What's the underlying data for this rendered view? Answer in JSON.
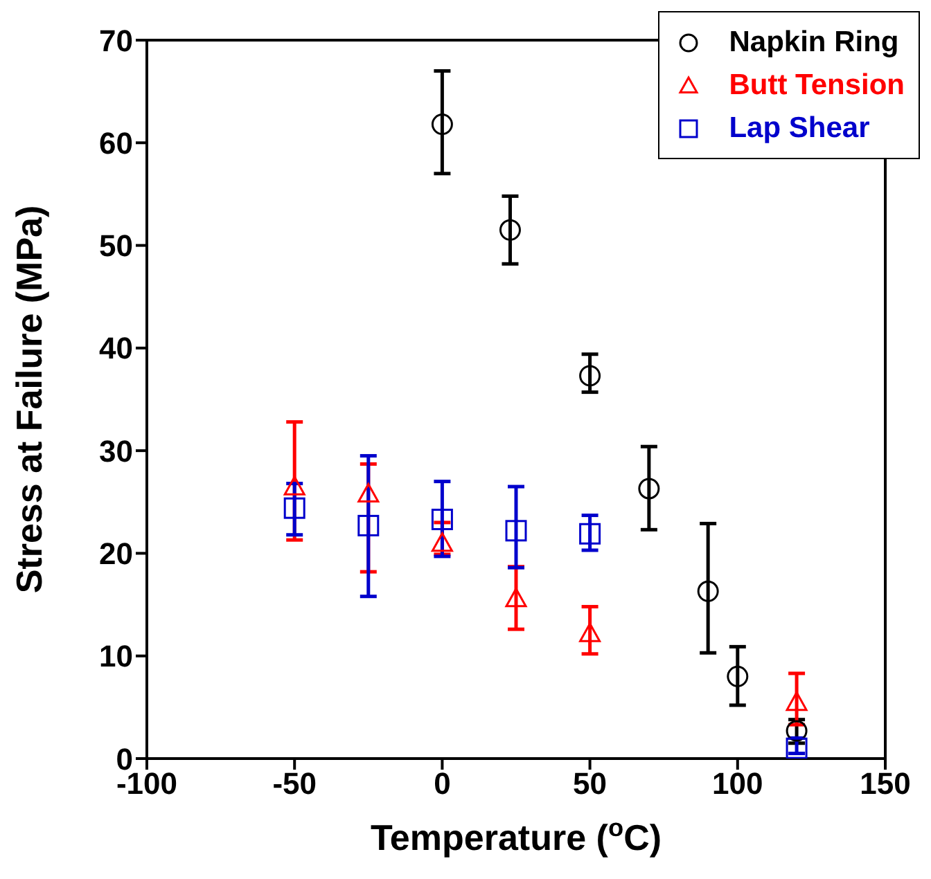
{
  "chart_data": {
    "type": "scatter",
    "xlabel": "Temperature ($^{o}$C)",
    "ylabel": "Stress at Failure (MPa)",
    "xlim": [
      -100,
      150
    ],
    "xticks": [
      -100,
      -50,
      0,
      50,
      100,
      150
    ],
    "ylim": [
      0,
      70
    ],
    "yticks": [
      0,
      10,
      20,
      30,
      40,
      50,
      60,
      70
    ],
    "legend": "top right",
    "series": [
      {
        "name": "Napkin Ring",
        "color": "#000000",
        "marker": "circle",
        "x": [
          0,
          23,
          50,
          70,
          90,
          100,
          120
        ],
        "values": [
          61.8,
          51.5,
          37.3,
          26.3,
          16.3,
          8,
          2.7
        ],
        "errors": [
          [
            57,
            67
          ],
          [
            48.2,
            54.8
          ],
          [
            35.7,
            39.4
          ],
          [
            22.3,
            30.4
          ],
          [
            10.3,
            22.9
          ],
          [
            5.2,
            10.9
          ],
          [
            1.5,
            3.8
          ]
        ]
      },
      {
        "name": "Butt Tension",
        "color": "#ff0000",
        "marker": "triangle",
        "x": [
          -50,
          -25,
          0,
          25,
          50,
          120
        ],
        "values": [
          26.5,
          25.8,
          21,
          15.6,
          12.2,
          5.5
        ],
        "errors": [
          [
            21.3,
            32.8
          ],
          [
            18.2,
            28.7
          ],
          [
            19.9,
            23
          ],
          [
            12.6,
            18.7
          ],
          [
            10.2,
            14.8
          ],
          [
            3.3,
            8.3
          ]
        ]
      },
      {
        "name": "Lap Shear",
        "color": "#0000cc",
        "marker": "square",
        "x": [
          -50,
          -25,
          0,
          25,
          50,
          120
        ],
        "values": [
          24.4,
          22.7,
          23.3,
          22.2,
          21.9,
          1
        ],
        "errors": [
          [
            21.8,
            26.8
          ],
          [
            15.8,
            29.5
          ],
          [
            19.7,
            27
          ],
          [
            18.6,
            26.5
          ],
          [
            20.3,
            23.7
          ],
          [
            0.5,
            2
          ]
        ]
      }
    ]
  }
}
